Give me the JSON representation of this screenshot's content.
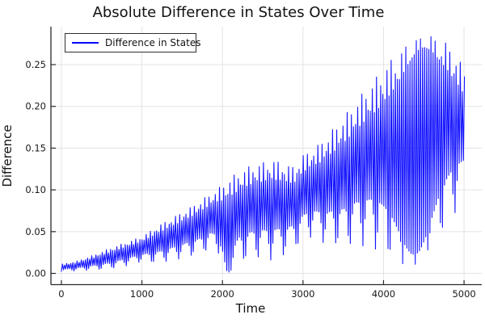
{
  "title": "Absolute Difference in States Over Time",
  "axes": {
    "xlabel": "Time",
    "ylabel": "Difference",
    "x_ticks": [
      {
        "v": 0,
        "label": "0"
      },
      {
        "v": 1000,
        "label": "1000"
      },
      {
        "v": 2000,
        "label": "2000"
      },
      {
        "v": 3000,
        "label": "3000"
      },
      {
        "v": 4000,
        "label": "4000"
      },
      {
        "v": 5000,
        "label": "5000"
      }
    ],
    "y_ticks": [
      {
        "v": 0.0,
        "label": "0.00"
      },
      {
        "v": 0.05,
        "label": "0.05"
      },
      {
        "v": 0.1,
        "label": "0.10"
      },
      {
        "v": 0.15,
        "label": "0.15"
      },
      {
        "v": 0.2,
        "label": "0.20"
      },
      {
        "v": 0.25,
        "label": "0.25"
      }
    ]
  },
  "legend": {
    "label": "Difference in States"
  },
  "colors": {
    "line": "#0000FF",
    "grid": "#e3e3e3",
    "spine": "#2a2a2a",
    "text": "#111111",
    "background": "#ffffff"
  },
  "chart_data": {
    "type": "line",
    "title": "Absolute Difference in States Over Time",
    "xlabel": "Time",
    "ylabel": "Difference",
    "xlim": [
      0,
      5000
    ],
    "ylim": [
      0,
      0.295
    ],
    "grid": true,
    "legend_position": "top-left",
    "series": [
      {
        "name": "Difference in States",
        "color": "#0000FF",
        "description": "Absolute difference of two oscillating states: a fast oscillation (period ~26 time units) bounded by slowly varying envelopes; values below give the lower and upper envelope of the oscillation",
        "sample_period": 13,
        "upper_envelope": [
          [
            0,
            0.011
          ],
          [
            200,
            0.015
          ],
          [
            400,
            0.022
          ],
          [
            600,
            0.03
          ],
          [
            800,
            0.037
          ],
          [
            1000,
            0.044
          ],
          [
            1200,
            0.057
          ],
          [
            1400,
            0.068
          ],
          [
            1600,
            0.079
          ],
          [
            1800,
            0.092
          ],
          [
            1950,
            0.102
          ],
          [
            2100,
            0.115
          ],
          [
            2300,
            0.127
          ],
          [
            2500,
            0.133
          ],
          [
            2650,
            0.136
          ],
          [
            2800,
            0.13
          ],
          [
            2900,
            0.128
          ],
          [
            3000,
            0.142
          ],
          [
            3100,
            0.148
          ],
          [
            3200,
            0.155
          ],
          [
            3300,
            0.165
          ],
          [
            3400,
            0.176
          ],
          [
            3500,
            0.187
          ],
          [
            3600,
            0.199
          ],
          [
            3700,
            0.211
          ],
          [
            3800,
            0.223
          ],
          [
            3900,
            0.234
          ],
          [
            4000,
            0.246
          ],
          [
            4100,
            0.257
          ],
          [
            4200,
            0.267
          ],
          [
            4300,
            0.276
          ],
          [
            4400,
            0.283
          ],
          [
            4500,
            0.287
          ],
          [
            4600,
            0.286
          ],
          [
            4700,
            0.282
          ],
          [
            4800,
            0.275
          ],
          [
            4900,
            0.263
          ],
          [
            4960,
            0.252
          ],
          [
            5010,
            0.241
          ]
        ],
        "lower_envelope": [
          [
            0,
            0.002
          ],
          [
            200,
            0.003
          ],
          [
            400,
            0.004
          ],
          [
            600,
            0.005
          ],
          [
            800,
            0.009
          ],
          [
            1000,
            0.014
          ],
          [
            1150,
            0.012
          ],
          [
            1300,
            0.014
          ],
          [
            1500,
            0.018
          ],
          [
            1700,
            0.022
          ],
          [
            1850,
            0.028
          ],
          [
            1950,
            0.024
          ],
          [
            2010,
            0.006
          ],
          [
            2070,
            0.0
          ],
          [
            2130,
            0.005
          ],
          [
            2250,
            0.013
          ],
          [
            2450,
            0.018
          ],
          [
            2600,
            0.016
          ],
          [
            2750,
            0.02
          ],
          [
            2900,
            0.028
          ],
          [
            3050,
            0.043
          ],
          [
            3150,
            0.042
          ],
          [
            3300,
            0.034
          ],
          [
            3500,
            0.03
          ],
          [
            3700,
            0.034
          ],
          [
            3850,
            0.03
          ],
          [
            3950,
            0.024
          ],
          [
            4050,
            0.018
          ],
          [
            4150,
            0.012
          ],
          [
            4250,
            0.008
          ],
          [
            4350,
            0.009
          ],
          [
            4450,
            0.013
          ],
          [
            4550,
            0.022
          ],
          [
            4650,
            0.035
          ],
          [
            4750,
            0.05
          ],
          [
            4850,
            0.066
          ],
          [
            4950,
            0.082
          ],
          [
            5010,
            0.092
          ]
        ]
      }
    ]
  }
}
